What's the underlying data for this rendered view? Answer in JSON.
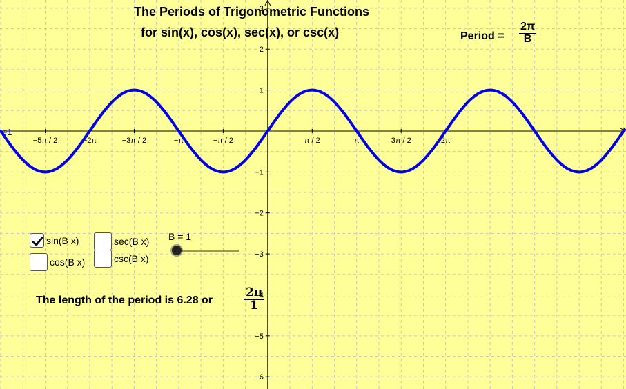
{
  "title_line1": "The Periods of Trigonometric Functions",
  "title_line2": "for sin(x), cos(x), sec(x), or csc(x)",
  "period_formula": {
    "label": "Period =",
    "numerator": "2π",
    "denominator": "B"
  },
  "checkboxes": [
    {
      "label": "sin(B x)",
      "checked": true
    },
    {
      "label": "sec(B x)",
      "checked": false
    },
    {
      "label": "cos(B x)",
      "checked": false
    },
    {
      "label": "csc(B x)",
      "checked": false
    }
  ],
  "slider": {
    "label": "B = 1",
    "value": 1
  },
  "period_text": {
    "text": "The length of the period is 6.28 or",
    "numerator": "2π",
    "denominator": "1"
  },
  "axis_name": "e1",
  "chart_data": {
    "type": "line",
    "function": "sin(B x)",
    "B": 1,
    "xlim": [
      -9.45,
      12.65
    ],
    "ylim": [
      -6.3,
      3.2
    ],
    "grid": true,
    "x_ticks": [
      {
        "value": -7.853982,
        "label": "−5π / 2"
      },
      {
        "value": -6.283185,
        "label": "−2π"
      },
      {
        "value": -4.712389,
        "label": "−3π / 2"
      },
      {
        "value": -3.141593,
        "label": "−π"
      },
      {
        "value": -1.570796,
        "label": "−π / 2"
      },
      {
        "value": 1.570796,
        "label": "π / 2"
      },
      {
        "value": 3.141593,
        "label": "π"
      },
      {
        "value": 4.712389,
        "label": "3π / 2"
      },
      {
        "value": 6.283185,
        "label": "2π"
      }
    ],
    "y_ticks": [
      3,
      2,
      1,
      -1,
      -2,
      -3,
      -4,
      -5,
      -6
    ],
    "series": [
      {
        "color": "#0000ee"
      }
    ],
    "axis_color": "#000000",
    "grid_color": "#c8c8c8"
  }
}
